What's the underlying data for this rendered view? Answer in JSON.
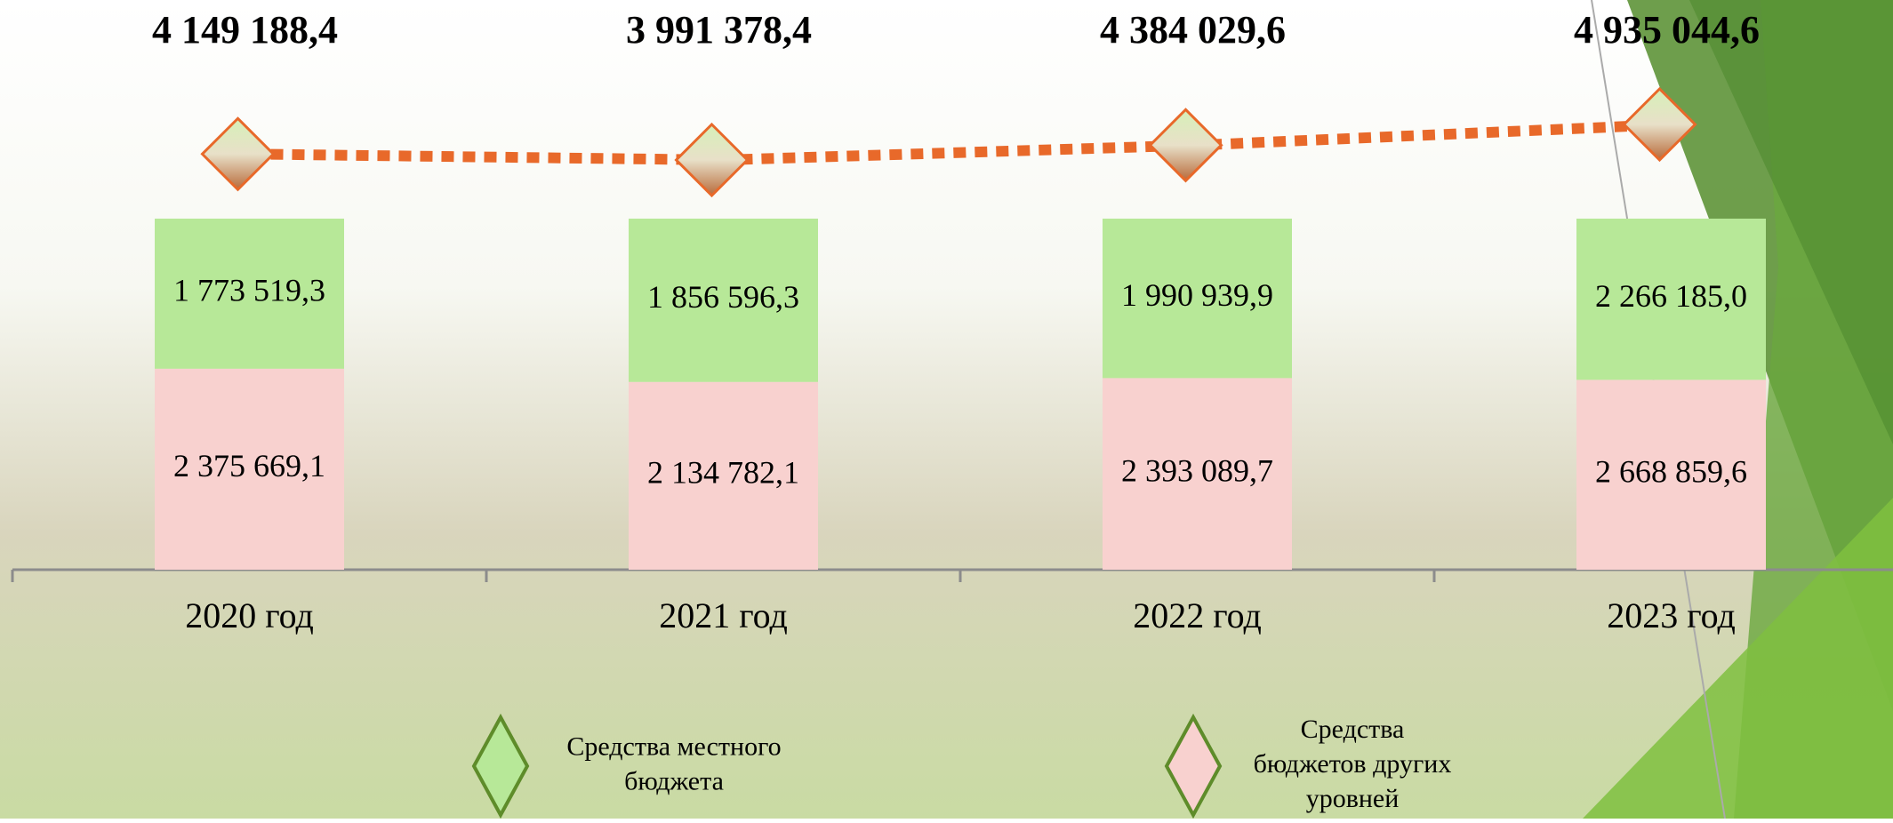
{
  "chart_data": {
    "type": "bar",
    "stacking": "percent",
    "categories": [
      "2020 год",
      "2021 год",
      "2022 год",
      "2023 год"
    ],
    "series": [
      {
        "name": "Средства бюджетов других уровней",
        "color": "#f8d1cf",
        "values": [
          2375669.1,
          2134782.1,
          2393089.7,
          2668859.6
        ],
        "value_labels": [
          "2 375 669,1",
          "2 134 782,1",
          "2 393 089,7",
          "2 668 859,6"
        ]
      },
      {
        "name": "Средства местного бюджета",
        "color": "#b7e898",
        "values": [
          1773519.3,
          1856596.3,
          1990939.9,
          2266185.0
        ],
        "value_labels": [
          "1 773 519,3",
          "1 856 596,3",
          "1 990 939,9",
          "2 266 185,0"
        ]
      },
      {
        "type": "line",
        "color": "#e8692a",
        "values": [
          4149188.4,
          3991378.4,
          4384029.6,
          4935044.6
        ],
        "value_labels": [
          "4 149 188,4",
          "3 991 378,4",
          "4 384 029,6",
          "4 935 044,6"
        ]
      }
    ]
  }
}
